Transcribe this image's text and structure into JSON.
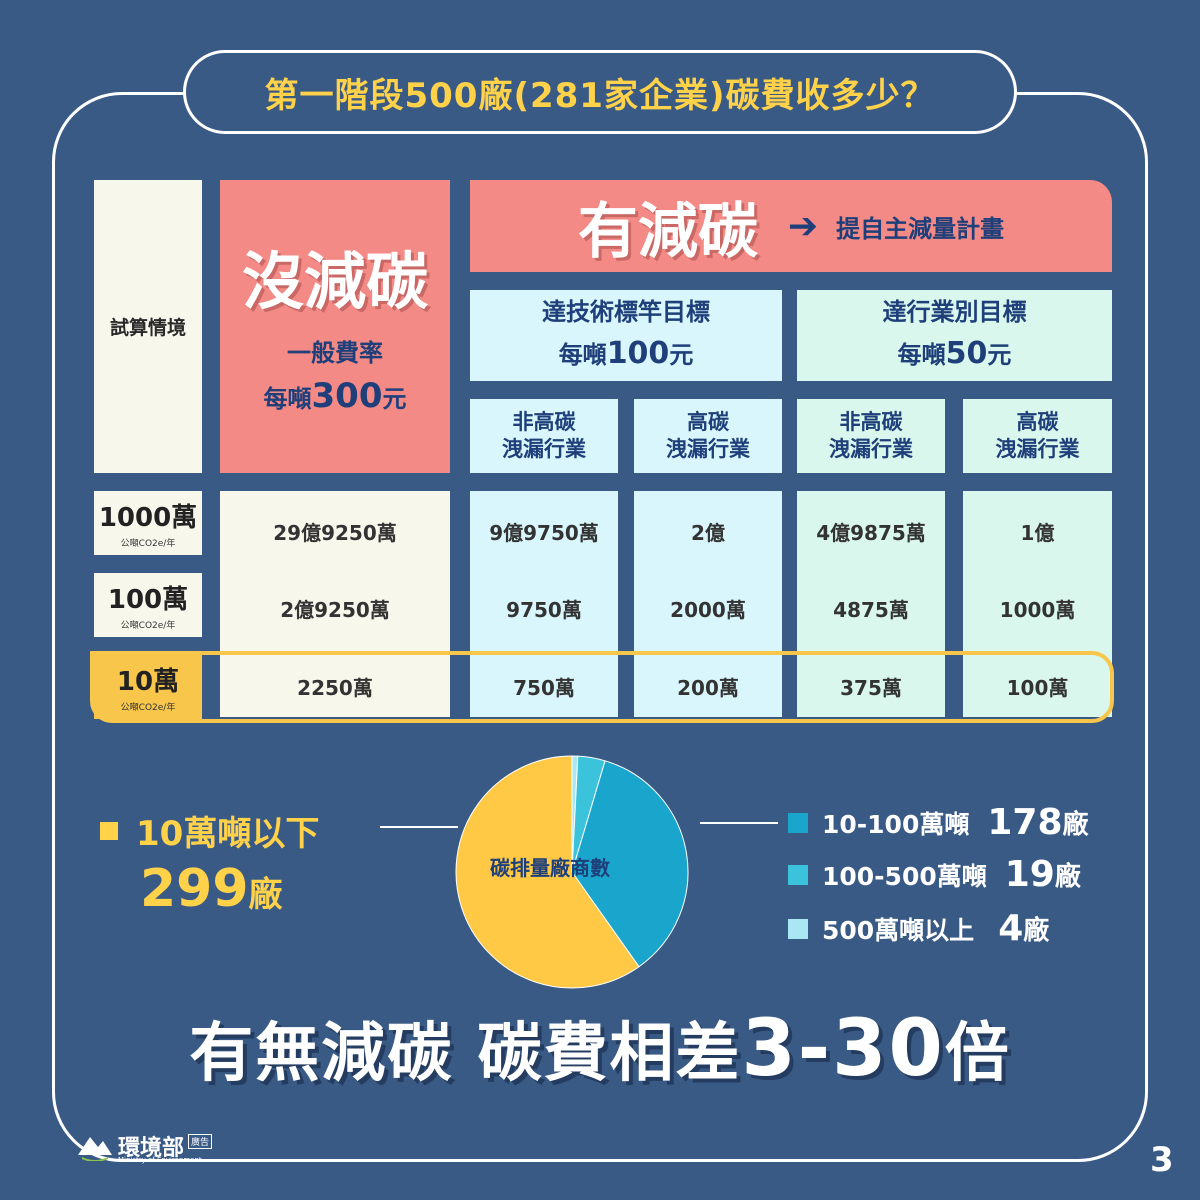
{
  "title": "第一階段500廠(281家企業)碳費收多少？",
  "table": {
    "scenario_label": "試算情境",
    "no_reduction": {
      "title": "沒減碳",
      "rate_name": "一般費率",
      "rate_prefix": "每噸",
      "rate_value": "300",
      "rate_unit": "元"
    },
    "with_reduction": {
      "title": "有減碳",
      "arrow": "➔",
      "plan": "提自主減量計畫"
    },
    "target_tech": {
      "name": "達技術標竿目標",
      "rate_prefix": "每噸",
      "rate_value": "100",
      "rate_unit": "元"
    },
    "target_industry": {
      "name": "達行業別目標",
      "rate_prefix": "每噸",
      "rate_value": "50",
      "rate_unit": "元"
    },
    "industries": [
      {
        "line1": "非高碳",
        "line2": "洩漏行業"
      },
      {
        "line1": "高碳",
        "line2": "洩漏行業"
      },
      {
        "line1": "非高碳",
        "line2": "洩漏行業"
      },
      {
        "line1": "高碳",
        "line2": "洩漏行業"
      }
    ],
    "rows": [
      {
        "label": "1000萬",
        "unit": "公噸CO2e/年",
        "values": [
          "29億9250萬",
          "9億9750萬",
          "2億",
          "4億9875萬",
          "1億"
        ]
      },
      {
        "label": "100萬",
        "unit": "公噸CO2e/年",
        "values": [
          "2億9250萬",
          "9750萬",
          "2000萬",
          "4875萬",
          "1000萬"
        ]
      },
      {
        "label": "10萬",
        "unit": "公噸CO2e/年",
        "values": [
          "2250萬",
          "750萬",
          "200萬",
          "375萬",
          "100萬"
        ]
      }
    ]
  },
  "chart_data": {
    "type": "pie",
    "title": "碳排量廠商數",
    "slices": [
      {
        "label": "10萬噸以下",
        "count_text": "299",
        "unit": "廠",
        "value": 299,
        "color": "#ffc845"
      },
      {
        "label": "10-100萬噸",
        "count_text": "178",
        "unit": "廠",
        "value": 178,
        "color": "#1aa5cc"
      },
      {
        "label": "100-500萬噸",
        "count_text": "19",
        "unit": "廠",
        "value": 19,
        "color": "#3cc3dc"
      },
      {
        "label": "500萬噸以上",
        "count_text": "4",
        "unit": "廠",
        "value": 4,
        "color": "#a9e7f2"
      }
    ]
  },
  "headline": {
    "text": "有無減碳 碳費相差",
    "num": "3-30",
    "suffix": "倍"
  },
  "footer": {
    "org": "環境部",
    "org_en": "Ministry of Environment",
    "ad": "廣告",
    "page": "3"
  },
  "colors": {
    "background": "#3a5a86",
    "red": "#f48a86",
    "cyan": "#d8f6fb",
    "mint": "#d9f7ec",
    "gold": "#f7c64a",
    "navy": "#1f3f7a"
  }
}
